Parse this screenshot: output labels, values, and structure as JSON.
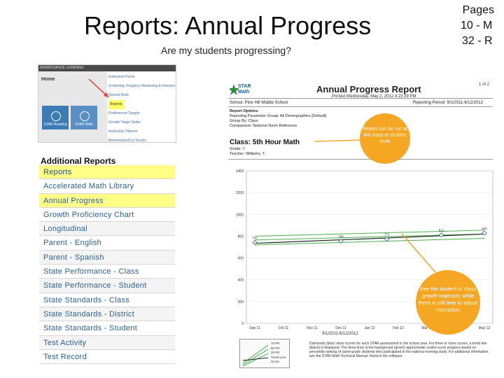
{
  "slide": {
    "title": "Reports: Annual Progress",
    "subtitle": "Are my students progressing?",
    "pages_line1": "Pages",
    "pages_line2": "10 - M",
    "pages_line3": "32 - R"
  },
  "screenshot_top": {
    "brand": "RENAISSANCE LEARNING",
    "home": "Home",
    "tiles": [
      {
        "label": "STAR Reading"
      },
      {
        "label": "STAR Math"
      }
    ],
    "menu": [
      "Enterprise Home",
      "Screening, Progress Monitoring & Intervention",
      "Record Book",
      "Reports",
      "Preferences Targets",
      "Growth Target Setter",
      "Instruction Planner",
      "Benchmarks/Cut Scores"
    ]
  },
  "additional_reports": {
    "title": "Additional Reports",
    "items": [
      "Reports",
      "Accelerated Math Library",
      "Annual Progress",
      "Growth Proficiency Chart",
      "Longitudinal",
      "Parent - English",
      "Parent - Spanish",
      "State Performance - Class",
      "State Performance - Student",
      "State Standards - Class",
      "State Standards - District",
      "State Standards - Student",
      "Test Activity",
      "Test Record"
    ]
  },
  "report": {
    "logo": "STAR Math",
    "title": "Annual Progress Report",
    "printed": "Printed Wednesday, May 2, 2012 4:23:39 PM",
    "page": "1 of 2",
    "school": "School: Pine Hill Middle School",
    "period": "Reporting Period: 9/1/2011-6/12/2012",
    "options": [
      "Report Options",
      "Reporting Parameter Group: All Demographics [Default]",
      "Group By: Class",
      "Comparison: National Norm Reference"
    ],
    "class_title": "Class: 5th Hour Math",
    "grade": "Grade: 7",
    "teacher": "Teacher: Williams, T.",
    "callout1": "Report can be run at the class or student level",
    "callout2": "See the student or class growth trajectory while there is still time to adjust instruction",
    "date_range": "9/1/2011-6/12/2012",
    "legend_items": [
      "75 PR",
      "50 PR",
      "25 PR",
      "Trend Line",
      "Score"
    ],
    "legend_text": "Diamonds (blue) show scores for each STAR assessment in the school year. For three or more scores, a trend line (black) is displayed. The three lines in the background (green) approximate scaled score progress based on percentile ranking of same-grade students who participated in the national norming study. For additional information, see the STAR Math Technical Manual, found in the software.",
    "colors": {
      "callout": "#f5a623",
      "diamond": "#3a6ea5",
      "band": "#4caf50",
      "trend": "#222222"
    }
  },
  "chart_data": {
    "type": "line",
    "categories": [
      "Sep 11",
      "Oct 11",
      "Nov 11",
      "Dec 11",
      "Jan 12",
      "Feb 12",
      "Mar 12",
      "Apr 12",
      "May 12"
    ],
    "ylim": [
      0,
      1400
    ],
    "yticks": [
      0,
      200,
      400,
      600,
      800,
      1000,
      1200,
      1400
    ],
    "scores": [
      {
        "x": 0,
        "y": 742,
        "label": "742"
      },
      {
        "x": 3,
        "y": 756,
        "label": "756"
      },
      {
        "x": 4.6,
        "y": 773,
        "label": "773"
      },
      {
        "x": 6.5,
        "y": 812,
        "label": "812"
      },
      {
        "x": 8,
        "y": 828,
        "label": "828"
      }
    ],
    "trend": [
      [
        0,
        735
      ],
      [
        8,
        820
      ]
    ],
    "bands": [
      {
        "name": "75 PR",
        "values": [
          [
            0,
            800
          ],
          [
            8,
            855
          ]
        ]
      },
      {
        "name": "50 PR",
        "values": [
          [
            0,
            765
          ],
          [
            8,
            820
          ]
        ]
      },
      {
        "name": "25 PR",
        "values": [
          [
            0,
            720
          ],
          [
            8,
            780
          ]
        ]
      }
    ]
  }
}
